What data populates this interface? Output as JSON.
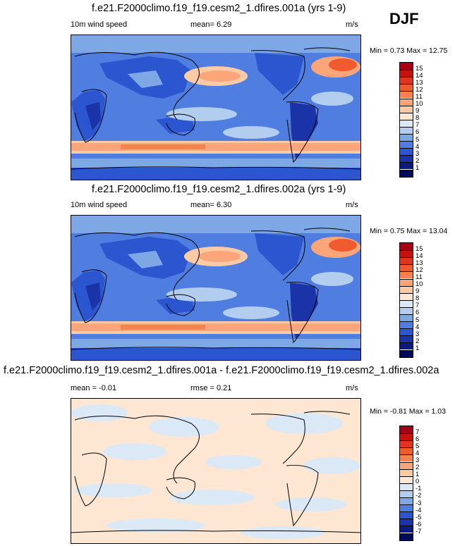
{
  "season": "DJF",
  "panels": [
    {
      "title": "f.e21.F2000climo.f19_f19.cesm2_1.dfires.001a (yrs 1-9)",
      "variable": "10m wind speed",
      "stat1": "mean=  6.29",
      "units": "m/s",
      "minmax": "Min =  0.73 Max =  12.75"
    },
    {
      "title": "f.e21.F2000climo.f19_f19.cesm2_1.dfires.002a (yrs 1-9)",
      "variable": "10m wind speed",
      "stat1": "mean=  6.30",
      "units": "m/s",
      "minmax": "Min =  0.75 Max =  13.04"
    },
    {
      "title": "f.e21.F2000climo.f19_f19.cesm2_1.dfires.001a - f.e21.F2000climo.f19_f19.cesm2_1.dfires.002a",
      "variable": "mean =  -0.01",
      "stat1": "rmse =  0.21",
      "units": "m/s",
      "minmax": "Min =  -0.81 Max =  1.03"
    }
  ],
  "colorbar_abs": {
    "labels": [
      "15",
      "14",
      "13",
      "12",
      "11",
      "10",
      "9",
      "8",
      "7",
      "6",
      "5",
      "4",
      "3",
      "2",
      "1"
    ],
    "colors": [
      "#a50013",
      "#c5120f",
      "#e0341d",
      "#ef5a2f",
      "#f7824d",
      "#fba57a",
      "#fdcaa6",
      "#fde7d3",
      "#dbe8f6",
      "#b3cdef",
      "#7ea7e6",
      "#4f7ee0",
      "#2c56cf",
      "#1a33a7",
      "#0c1a80",
      "#000a5c"
    ]
  },
  "colorbar_diff": {
    "labels": [
      "7",
      "6",
      "5",
      "4",
      "3",
      "2",
      "1",
      "0",
      "-1",
      "-2",
      "-3",
      "-4",
      "-5",
      "-6",
      "-7"
    ],
    "colors": [
      "#a50013",
      "#c5120f",
      "#e0341d",
      "#ef5a2f",
      "#f7824d",
      "#fba57a",
      "#fdcaa6",
      "#fde7d3",
      "#dbe8f6",
      "#b3cdef",
      "#7ea7e6",
      "#4f7ee0",
      "#2c56cf",
      "#1a33a7",
      "#0c1a80",
      "#000a5c"
    ]
  }
}
